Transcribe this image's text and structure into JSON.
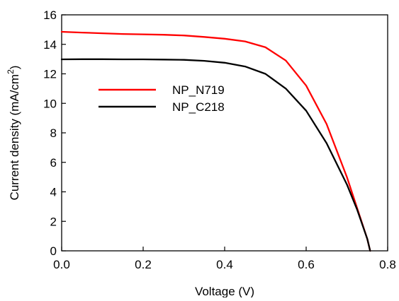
{
  "chart_data": {
    "type": "line",
    "title": "",
    "xlabel": "Voltage (V)",
    "ylabel": {
      "main": "Current density (mA/cm",
      "sup": "2",
      "end": ")"
    },
    "xlim": [
      0.0,
      0.8
    ],
    "ylim": [
      0,
      16
    ],
    "xticks": [
      0.0,
      0.2,
      0.4,
      0.6,
      0.8
    ],
    "xtick_labels": [
      "0.0",
      "0.2",
      "0.4",
      "0.6",
      "0.8"
    ],
    "yticks": [
      0,
      2,
      4,
      6,
      8,
      10,
      12,
      14,
      16
    ],
    "ytick_labels": [
      "0",
      "2",
      "4",
      "6",
      "8",
      "10",
      "12",
      "14",
      "16"
    ],
    "grid": false,
    "legend_position": "upper-left-inside",
    "series": [
      {
        "name": "NP_N719",
        "color": "#ff0000",
        "x": [
          0.0,
          0.05,
          0.1,
          0.15,
          0.2,
          0.25,
          0.3,
          0.35,
          0.4,
          0.45,
          0.5,
          0.55,
          0.6,
          0.65,
          0.7,
          0.725,
          0.75,
          0.757
        ],
        "y": [
          14.85,
          14.8,
          14.75,
          14.7,
          14.68,
          14.65,
          14.6,
          14.5,
          14.38,
          14.2,
          13.8,
          12.9,
          11.2,
          8.6,
          5.0,
          2.9,
          0.8,
          0.0
        ]
      },
      {
        "name": "NP_C218",
        "color": "#000000",
        "x": [
          0.0,
          0.05,
          0.1,
          0.15,
          0.2,
          0.25,
          0.3,
          0.35,
          0.4,
          0.45,
          0.5,
          0.55,
          0.6,
          0.65,
          0.7,
          0.725,
          0.75,
          0.757
        ],
        "y": [
          12.98,
          12.99,
          12.99,
          12.98,
          12.98,
          12.97,
          12.95,
          12.88,
          12.75,
          12.5,
          12.0,
          11.0,
          9.5,
          7.3,
          4.5,
          2.8,
          0.8,
          0.0
        ]
      }
    ]
  }
}
